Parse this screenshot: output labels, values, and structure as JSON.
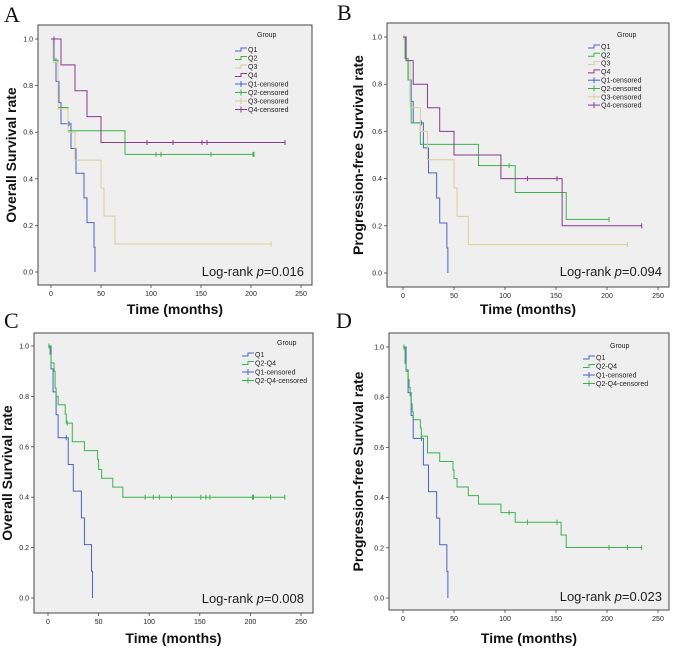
{
  "chart_data": [
    {
      "type": "line",
      "panel_letter": "A",
      "ylabel": "Overall Survival rate",
      "xlabel": "Time (months)",
      "xlim": [
        0,
        250
      ],
      "ylim": [
        0,
        1
      ],
      "xticks": [
        "0",
        "50",
        "100",
        "150",
        "200",
        "250"
      ],
      "yticks": [
        "0.0",
        "0.2",
        "0.4",
        "0.6",
        "0.8",
        "1.0"
      ],
      "legend_title": "Group",
      "legend_placement": "top-right",
      "annotation": {
        "prefix": "Log-rank ",
        "p": "p",
        "value": "=0.016"
      },
      "series": [
        {
          "name": "Q1",
          "censored_label": "Q1-censored",
          "color": "#4a63c8",
          "steps": [
            [
              0,
              1
            ],
            [
              3,
              0.909
            ],
            [
              5,
              0.818
            ],
            [
              8,
              0.727
            ],
            [
              10,
              0.636
            ],
            [
              20,
              0.53
            ],
            [
              25,
              0.424
            ],
            [
              33,
              0.318
            ],
            [
              36,
              0.212
            ],
            [
              43,
              0.106
            ],
            [
              44,
              0
            ]
          ],
          "censored": [
            18
          ]
        },
        {
          "name": "Q2",
          "censored_label": "Q2-censored",
          "color": "#3db34b",
          "steps": [
            [
              0,
              1
            ],
            [
              2,
              0.909
            ],
            [
              7,
              0.706
            ],
            [
              17,
              0.606
            ],
            [
              74,
              0.505
            ],
            [
              203,
              0.505
            ]
          ],
          "censored": [
            5,
            105,
            110,
            160,
            202,
            203
          ]
        },
        {
          "name": "Q3",
          "censored_label": "Q3-censored",
          "color": "#d8cf96",
          "steps": [
            [
              0,
              1
            ],
            [
              2,
              0.9
            ],
            [
              7,
              0.7
            ],
            [
              17,
              0.6
            ],
            [
              24,
              0.48
            ],
            [
              50,
              0.36
            ],
            [
              53,
              0.24
            ],
            [
              64,
              0.12
            ],
            [
              220,
              0.12
            ]
          ],
          "censored": [
            220
          ]
        },
        {
          "name": "Q4",
          "censored_label": "Q4-censored",
          "color": "#8b3a8e",
          "steps": [
            [
              0,
              1
            ],
            [
              10,
              0.889
            ],
            [
              24,
              0.778
            ],
            [
              36,
              0.667
            ],
            [
              50,
              0.556
            ],
            [
              234,
              0.556
            ]
          ],
          "censored": [
            3,
            96,
            122,
            151,
            156,
            234
          ]
        }
      ]
    },
    {
      "type": "line",
      "panel_letter": "B",
      "ylabel": "Progression-free Survival rate",
      "xlabel": "Time (months)",
      "xlim": [
        0,
        250
      ],
      "ylim": [
        0,
        1
      ],
      "xticks": [
        "0",
        "50",
        "100",
        "150",
        "200",
        "250"
      ],
      "yticks": [
        "0.0",
        "0.2",
        "0.4",
        "0.6",
        "0.8",
        "1.0"
      ],
      "legend_title": "Group",
      "legend_placement": "top-right",
      "annotation": {
        "prefix": "Log-rank ",
        "p": "p",
        "value": "=0.094"
      },
      "series": [
        {
          "name": "Q1",
          "censored_label": "Q1-censored",
          "color": "#4a63c8",
          "steps": [
            [
              0,
              1
            ],
            [
              3,
              0.909
            ],
            [
              5,
              0.818
            ],
            [
              8,
              0.727
            ],
            [
              10,
              0.636
            ],
            [
              20,
              0.53
            ],
            [
              25,
              0.424
            ],
            [
              33,
              0.318
            ],
            [
              36,
              0.212
            ],
            [
              43,
              0.106
            ],
            [
              44,
              0
            ]
          ],
          "censored": [
            18
          ]
        },
        {
          "name": "Q2",
          "censored_label": "Q2-censored",
          "color": "#3db34b",
          "steps": [
            [
              0,
              1
            ],
            [
              2,
              0.909
            ],
            [
              5,
              0.818
            ],
            [
              7,
              0.727
            ],
            [
              8,
              0.636
            ],
            [
              17,
              0.545
            ],
            [
              74,
              0.455
            ],
            [
              110,
              0.341
            ],
            [
              160,
              0.227
            ],
            [
              202,
              0.227
            ]
          ],
          "censored": [
            104,
            202
          ]
        },
        {
          "name": "Q3",
          "censored_label": "Q3-censored",
          "color": "#d8cf96",
          "steps": [
            [
              0,
              1
            ],
            [
              3,
              0.9
            ],
            [
              7,
              0.7
            ],
            [
              17,
              0.6
            ],
            [
              24,
              0.48
            ],
            [
              50,
              0.36
            ],
            [
              53,
              0.24
            ],
            [
              64,
              0.12
            ],
            [
              220,
              0.12
            ]
          ],
          "censored": [
            1,
            220
          ]
        },
        {
          "name": "Q4",
          "censored_label": "Q4-censored",
          "color": "#8b3a8e",
          "steps": [
            [
              0,
              1
            ],
            [
              3,
              0.9
            ],
            [
              10,
              0.8
            ],
            [
              24,
              0.7
            ],
            [
              36,
              0.6
            ],
            [
              50,
              0.5
            ],
            [
              96,
              0.4
            ],
            [
              156,
              0.2
            ],
            [
              234,
              0.2
            ]
          ],
          "censored": [
            122,
            151,
            234
          ]
        }
      ]
    },
    {
      "type": "line",
      "panel_letter": "C",
      "ylabel": "Overall Survival rate",
      "xlabel": "Time (months)",
      "xlim": [
        0,
        250
      ],
      "ylim": [
        0,
        1
      ],
      "xticks": [
        "0",
        "50",
        "100",
        "150",
        "200",
        "250"
      ],
      "yticks": [
        "0.0",
        "0.2",
        "0.4",
        "0.6",
        "0.8",
        "1.0"
      ],
      "legend_title": "Group",
      "legend_placement": "top-right",
      "annotation": {
        "prefix": "Log-rank ",
        "p": "p",
        "value": "=0.008"
      },
      "series": [
        {
          "name": "Q1",
          "censored_label": "Q1-censored",
          "color": "#4a63c8",
          "steps": [
            [
              0,
              1
            ],
            [
              3,
              0.909
            ],
            [
              5,
              0.818
            ],
            [
              8,
              0.727
            ],
            [
              10,
              0.636
            ],
            [
              20,
              0.53
            ],
            [
              25,
              0.424
            ],
            [
              33,
              0.318
            ],
            [
              36,
              0.212
            ],
            [
              43,
              0.106
            ],
            [
              44,
              0
            ]
          ],
          "censored": [
            18
          ]
        },
        {
          "name": "Q2-Q4",
          "censored_label": "Q2-Q4-censored",
          "color": "#3db34b",
          "steps": [
            [
              0,
              1
            ],
            [
              2,
              0.967
            ],
            [
              3,
              0.933
            ],
            [
              6,
              0.9
            ],
            [
              7,
              0.833
            ],
            [
              8,
              0.8
            ],
            [
              10,
              0.767
            ],
            [
              17,
              0.73
            ],
            [
              18,
              0.694
            ],
            [
              24,
              0.62
            ],
            [
              36,
              0.585
            ],
            [
              49,
              0.55
            ],
            [
              50,
              0.51
            ],
            [
              53,
              0.475
            ],
            [
              64,
              0.44
            ],
            [
              74,
              0.4
            ],
            [
              234,
              0.4
            ]
          ],
          "censored": [
            1,
            3,
            19,
            96,
            104,
            110,
            122,
            151,
            156,
            160,
            202,
            203,
            220,
            234
          ]
        }
      ]
    },
    {
      "type": "line",
      "panel_letter": "D",
      "ylabel": "Progression-free Survival rate",
      "xlabel": "Time (months)",
      "xlim": [
        0,
        250
      ],
      "ylim": [
        0,
        1
      ],
      "xticks": [
        "0",
        "50",
        "100",
        "150",
        "200",
        "250"
      ],
      "yticks": [
        "0.0",
        "0.2",
        "0.4",
        "0.6",
        "0.8",
        "1.0"
      ],
      "legend_title": "Group",
      "legend_placement": "top-right",
      "annotation": {
        "prefix": "Log-rank ",
        "p": "p",
        "value": "=0.023"
      },
      "series": [
        {
          "name": "Q1",
          "censored_label": "Q1-censored",
          "color": "#4a63c8",
          "steps": [
            [
              0,
              1
            ],
            [
              3,
              0.909
            ],
            [
              5,
              0.818
            ],
            [
              8,
              0.727
            ],
            [
              10,
              0.636
            ],
            [
              20,
              0.53
            ],
            [
              25,
              0.424
            ],
            [
              33,
              0.318
            ],
            [
              36,
              0.212
            ],
            [
              43,
              0.106
            ],
            [
              44,
              0
            ]
          ],
          "censored": [
            18
          ]
        },
        {
          "name": "Q2-Q4",
          "censored_label": "Q2-Q4-censored",
          "color": "#3db34b",
          "steps": [
            [
              0,
              1
            ],
            [
              2,
              0.935
            ],
            [
              3,
              0.903
            ],
            [
              5,
              0.871
            ],
            [
              6,
              0.839
            ],
            [
              7,
              0.806
            ],
            [
              8,
              0.774
            ],
            [
              9,
              0.742
            ],
            [
              10,
              0.71
            ],
            [
              17,
              0.677
            ],
            [
              18,
              0.645
            ],
            [
              24,
              0.578
            ],
            [
              36,
              0.544
            ],
            [
              49,
              0.51
            ],
            [
              50,
              0.476
            ],
            [
              53,
              0.442
            ],
            [
              64,
              0.408
            ],
            [
              74,
              0.374
            ],
            [
              96,
              0.34
            ],
            [
              110,
              0.302
            ],
            [
              155,
              0.251
            ],
            [
              160,
              0.201
            ],
            [
              234,
              0.201
            ]
          ],
          "censored": [
            1,
            18,
            104,
            122,
            151,
            202,
            220,
            234
          ]
        }
      ]
    }
  ]
}
